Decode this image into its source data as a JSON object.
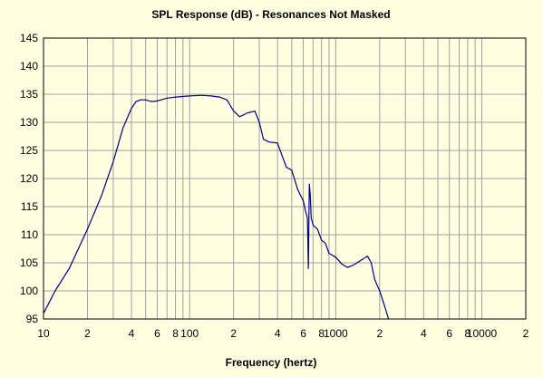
{
  "chart_data": {
    "type": "line",
    "title": "SPL Response (dB) - Resonances Not Masked",
    "xlabel": "Frequency (hertz)",
    "ylabel": "",
    "x_scale": "log",
    "xlim": [
      10,
      20000
    ],
    "ylim": [
      95,
      145
    ],
    "y_ticks": [
      95,
      100,
      105,
      110,
      115,
      120,
      125,
      130,
      135,
      140,
      145
    ],
    "x_ticks": [
      {
        "value": 10,
        "label": "10"
      },
      {
        "value": 20,
        "label": "2"
      },
      {
        "value": 40,
        "label": "4"
      },
      {
        "value": 60,
        "label": "6"
      },
      {
        "value": 80,
        "label": "8"
      },
      {
        "value": 100,
        "label": "100"
      },
      {
        "value": 200,
        "label": "2"
      },
      {
        "value": 400,
        "label": "4"
      },
      {
        "value": 600,
        "label": "6"
      },
      {
        "value": 800,
        "label": "8"
      },
      {
        "value": 1000,
        "label": "1000"
      },
      {
        "value": 2000,
        "label": "2"
      },
      {
        "value": 4000,
        "label": "4"
      },
      {
        "value": 6000,
        "label": "6"
      },
      {
        "value": 8000,
        "label": "8"
      },
      {
        "value": 10000,
        "label": "10000"
      },
      {
        "value": 20000,
        "label": "2"
      }
    ],
    "grid": true,
    "legend": "none",
    "colors": {
      "background": "#FFFFE1",
      "plot_background": "#FFFFE1",
      "grid": "#A0A0A0",
      "line": "#000080",
      "frame": "#000000"
    },
    "series": [
      {
        "x": [
          10,
          12,
          15,
          20,
          25,
          30,
          35,
          40,
          43,
          46,
          50,
          55,
          60,
          70,
          80,
          100,
          120,
          140,
          160,
          180,
          200,
          220,
          250,
          280,
          300,
          320,
          350,
          400,
          430,
          460,
          500,
          550,
          600,
          620,
          640,
          650,
          660,
          670,
          680,
          700,
          750,
          800,
          850,
          900,
          1000,
          1100,
          1200,
          1300,
          1400,
          1500,
          1650,
          1750,
          1850,
          2000,
          2150,
          2300
        ],
        "y": [
          96,
          100,
          104,
          111,
          117,
          123,
          129,
          132.5,
          133.7,
          134,
          134,
          133.7,
          133.8,
          134.3,
          134.5,
          134.7,
          134.8,
          134.7,
          134.5,
          134,
          132,
          131,
          131.7,
          132,
          130,
          127,
          126.5,
          126.3,
          124,
          122,
          121.5,
          118,
          116,
          114.3,
          113,
          104,
          119,
          117,
          113,
          111.7,
          111,
          109,
          108.5,
          106.7,
          106,
          104.8,
          104.2,
          104.5,
          105,
          105.5,
          106.2,
          105,
          102,
          100,
          97.5,
          95
        ]
      }
    ]
  }
}
